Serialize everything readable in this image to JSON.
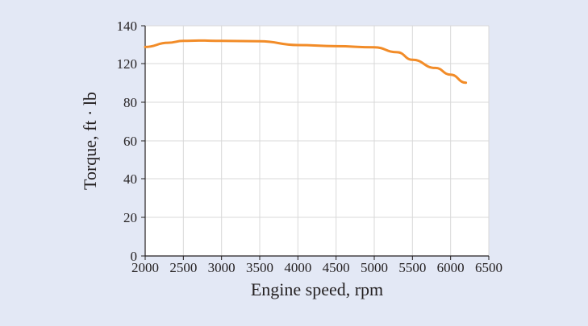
{
  "colors": {
    "background": "#e3e8f5",
    "plot_area": "#ffffff",
    "grid": "#d9d9d9",
    "axis": "#231f20",
    "line": "#f28c28"
  },
  "chart_data": {
    "type": "line",
    "title": "",
    "xlabel": "Engine speed, rpm",
    "ylabel": "Torque, ft · lb",
    "xlim": [
      2000,
      6500
    ],
    "ylim": [
      0,
      140
    ],
    "xticks": [
      2000,
      2500,
      3000,
      3500,
      4000,
      4500,
      5000,
      5500,
      6000,
      6500
    ],
    "yticks": [
      0,
      20,
      40,
      60,
      80,
      120,
      140
    ],
    "grid": true,
    "legend": "none",
    "series": [
      {
        "color": "#f28c28",
        "x": [
          2000,
          2300,
          2500,
          2700,
          3000,
          3500,
          4000,
          4500,
          5000,
          5300,
          5500,
          5800,
          6000,
          6200
        ],
        "y": [
          128.8,
          131.0,
          132.0,
          132.2,
          132.0,
          131.8,
          129.8,
          129.2,
          128.6,
          126.0,
          122.0,
          115.5,
          108.5,
          100.2
        ]
      }
    ]
  }
}
